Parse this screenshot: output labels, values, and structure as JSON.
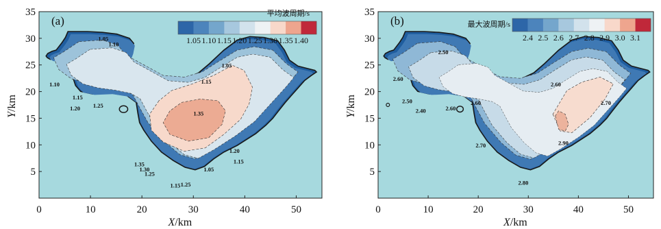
{
  "chart_data": [
    {
      "type": "heatmap",
      "panel_label": "(a)",
      "xlabel_var": "X",
      "xlabel_unit": "/km",
      "ylabel_var": "Y",
      "ylabel_unit": "/km",
      "xlim": [
        0,
        55
      ],
      "ylim": [
        0,
        35
      ],
      "xticks": [
        0,
        10,
        20,
        30,
        40,
        50
      ],
      "yticks": [
        5,
        10,
        15,
        20,
        25,
        30,
        35
      ],
      "colorbar": {
        "title": "平均波周期/s",
        "levels": [
          1.05,
          1.1,
          1.15,
          1.2,
          1.25,
          1.3,
          1.35,
          1.4
        ],
        "tick_labels": [
          "1.05",
          "1.10",
          "1.15",
          "1.20",
          "1.25",
          "1.30",
          "1.35",
          "1.40"
        ],
        "colors": [
          "#2d66a8",
          "#4c84bc",
          "#74a6cc",
          "#a7c8de",
          "#d2e2ec",
          "#eef2f4",
          "#f8d8ca",
          "#eea58e",
          "#c0283a"
        ]
      },
      "contour_labels": [
        {
          "text": "1.05",
          "x": 12.5,
          "y": 29.5
        },
        {
          "text": "1.10",
          "x": 14.5,
          "y": 28.5
        },
        {
          "text": "1.10",
          "x": 3,
          "y": 21.0
        },
        {
          "text": "1.15",
          "x": 7.5,
          "y": 18.5
        },
        {
          "text": "1.20",
          "x": 7.0,
          "y": 16.5
        },
        {
          "text": "1.25",
          "x": 11.5,
          "y": 17.0
        },
        {
          "text": "1.05",
          "x": 36.5,
          "y": 24.5
        },
        {
          "text": "1.15",
          "x": 32.5,
          "y": 21.5
        },
        {
          "text": "1.35",
          "x": 31.0,
          "y": 15.5
        },
        {
          "text": "1.20",
          "x": 38.0,
          "y": 8.5
        },
        {
          "text": "1.15",
          "x": 38.8,
          "y": 6.5
        },
        {
          "text": "1.05",
          "x": 33.0,
          "y": 5.0
        },
        {
          "text": "1.35",
          "x": 19.5,
          "y": 6.0
        },
        {
          "text": "1.30",
          "x": 20.5,
          "y": 5.0
        },
        {
          "text": "1.25",
          "x": 21.5,
          "y": 4.2
        },
        {
          "text": "1.15",
          "x": 26.5,
          "y": 2.0
        },
        {
          "text": "1.25",
          "x": 28.5,
          "y": 2.2
        }
      ]
    },
    {
      "type": "heatmap",
      "panel_label": "(b)",
      "xlabel_var": "X",
      "xlabel_unit": "/km",
      "ylabel_var": "Y",
      "ylabel_unit": "/km",
      "xlim": [
        0,
        55
      ],
      "ylim": [
        0,
        35
      ],
      "xticks": [
        0,
        10,
        20,
        30,
        40,
        50
      ],
      "yticks": [
        5,
        10,
        15,
        20,
        25,
        30,
        35
      ],
      "colorbar": {
        "title": "最大波周期/s",
        "levels": [
          2.4,
          2.5,
          2.6,
          2.7,
          2.8,
          2.9,
          3.0,
          3.1
        ],
        "tick_labels": [
          "2.4",
          "2.5",
          "2.6",
          "2.7",
          "2.8",
          "2.9",
          "3.0",
          "3.1"
        ],
        "colors": [
          "#2d66a8",
          "#4c84bc",
          "#74a6cc",
          "#a7c8de",
          "#d2e2ec",
          "#eef2f4",
          "#f8d8ca",
          "#eea58e",
          "#c0283a"
        ]
      },
      "contour_labels": [
        {
          "text": "2.50",
          "x": 13.0,
          "y": 27.0
        },
        {
          "text": "2.60",
          "x": 4.0,
          "y": 22.0
        },
        {
          "text": "2.50",
          "x": 5.8,
          "y": 17.8
        },
        {
          "text": "2.40",
          "x": 8.5,
          "y": 16.0
        },
        {
          "text": "2.60",
          "x": 14.5,
          "y": 16.5
        },
        {
          "text": "2.60",
          "x": 19.5,
          "y": 17.5
        },
        {
          "text": "2.60",
          "x": 35.5,
          "y": 21.0
        },
        {
          "text": "2.70",
          "x": 45.5,
          "y": 17.5
        },
        {
          "text": "2.70",
          "x": 20.5,
          "y": 9.5
        },
        {
          "text": "2.90",
          "x": 37.0,
          "y": 10.0
        },
        {
          "text": "2.80",
          "x": 29.0,
          "y": 2.5
        }
      ]
    }
  ]
}
